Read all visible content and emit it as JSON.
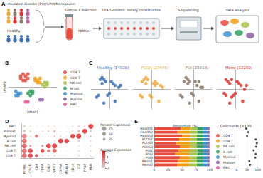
{
  "panels": [
    "A",
    "B",
    "C",
    "D",
    "E"
  ],
  "diagram": {
    "disorder_group": "Ovulation disorder (PCOS/POI/Menopause)",
    "healthy_group": "Healthy",
    "sample_label": "PBMCs",
    "steps": [
      "Sample Collection",
      "10X Genomic library construction",
      "Sequencing",
      "data analysis"
    ]
  },
  "chart_data": [
    {
      "type": "scatter",
      "xlabel": "UMAP1",
      "ylabel": "UMAP2",
      "xlim": [
        -10,
        10
      ],
      "ylim": [
        -10,
        10
      ],
      "tick_labels": false,
      "legend": "right",
      "series": [
        {
          "name": "CD4 T",
          "color": "#e84a3c",
          "x": [
            -5,
            -4,
            -3,
            -2,
            -4,
            -3,
            -5,
            -2
          ],
          "y": [
            5,
            6,
            5,
            4,
            3,
            3,
            4,
            6
          ]
        },
        {
          "name": "CD8 T",
          "color": "#f39c12",
          "x": [
            1,
            2,
            3,
            2,
            3,
            1
          ],
          "y": [
            4,
            3,
            4,
            2,
            2,
            3
          ]
        },
        {
          "name": "NK cell",
          "color": "#a6c34a",
          "x": [
            5,
            6,
            5,
            6,
            4
          ],
          "y": [
            2,
            1,
            0,
            2,
            1
          ]
        },
        {
          "name": "B cell",
          "color": "#2e9e5b",
          "x": [
            -1,
            0,
            -1,
            0,
            -2
          ],
          "y": [
            -2,
            -3,
            -4,
            -2,
            -3
          ]
        },
        {
          "name": "Myeloid",
          "color": "#3b8fd1",
          "x": [
            -7,
            -6,
            -6,
            -5,
            -7
          ],
          "y": [
            -2,
            -3,
            -4,
            -3,
            -4
          ]
        },
        {
          "name": "Platelet",
          "color": "#8e5ea2",
          "x": [
            3,
            4
          ],
          "y": [
            -6,
            -6
          ]
        },
        {
          "name": "RBC",
          "color": "#e6559a",
          "x": [
            -3,
            -2
          ],
          "y": [
            -7,
            -7
          ]
        }
      ]
    },
    {
      "type": "scatter",
      "title": "Healthy (14938)",
      "color": "#3a6cb5",
      "xlim": [
        -10,
        10
      ],
      "ylim": [
        -10,
        10
      ],
      "tick_labels": false,
      "x": [
        -5,
        -4,
        -3,
        -2,
        -4,
        1,
        2,
        3,
        5,
        6,
        -1,
        0,
        -6,
        -7,
        3,
        -3
      ],
      "y": [
        5,
        6,
        5,
        4,
        3,
        4,
        3,
        2,
        1,
        2,
        -3,
        -2,
        -3,
        -4,
        -6,
        -7
      ]
    },
    {
      "type": "scatter",
      "title": "PCOS (27675)",
      "color": "#f2a93b",
      "xlim": [
        -10,
        10
      ],
      "ylim": [
        -10,
        10
      ],
      "tick_labels": false,
      "x": [
        -5,
        -3,
        -2,
        -4,
        -3,
        1,
        2,
        3,
        2,
        5,
        6,
        -1,
        0,
        -6,
        -5,
        4
      ],
      "y": [
        4,
        6,
        5,
        5,
        3,
        3,
        4,
        3,
        2,
        2,
        1,
        -3,
        -4,
        -3,
        -4,
        -6
      ]
    },
    {
      "type": "scatter",
      "title": "POI (25816)",
      "color": "#8b7b6b",
      "xlim": [
        -10,
        10
      ],
      "ylim": [
        -10,
        10
      ],
      "tick_labels": false,
      "x": [
        -4,
        -3,
        -2,
        -5,
        -3,
        1,
        3,
        2,
        5,
        4,
        -1,
        0,
        -7,
        -6,
        3,
        -2
      ],
      "y": [
        6,
        5,
        4,
        4,
        3,
        4,
        4,
        2,
        1,
        1,
        -2,
        -3,
        -3,
        -4,
        -6,
        -7
      ]
    },
    {
      "type": "scatter",
      "title": "Meno (12260)",
      "color": "#e0302f",
      "xlim": [
        -10,
        10
      ],
      "ylim": [
        -10,
        10
      ],
      "tick_labels": false,
      "x": [
        -5,
        -4,
        -2,
        -3,
        2,
        1,
        3,
        6,
        5,
        -1,
        -2,
        0,
        -6,
        -5,
        4,
        -3
      ],
      "y": [
        5,
        4,
        5,
        3,
        3,
        4,
        2,
        2,
        0,
        -3,
        -4,
        -2,
        -2,
        -3,
        -6,
        -7
      ]
    },
    {
      "type": "dot",
      "categories": [
        "PTPRC",
        "CD3D",
        "CD4",
        "CD8A",
        "GNLY",
        "NKG7",
        "CD79A",
        "MS4A1",
        "CD14",
        "LYZ",
        "PPBP",
        "HBB"
      ],
      "rows": [
        "CD4 T",
        "CD8 T",
        "NK cell",
        "B cell",
        "Myeloid",
        "Platelet",
        "RBC"
      ],
      "percent_expressed": [
        [
          90,
          85,
          40,
          5,
          5,
          10,
          2,
          2,
          1,
          5,
          1,
          5
        ],
        [
          90,
          85,
          3,
          60,
          40,
          70,
          2,
          2,
          1,
          5,
          1,
          5
        ],
        [
          90,
          20,
          2,
          20,
          90,
          95,
          2,
          2,
          1,
          5,
          1,
          5
        ],
        [
          90,
          5,
          2,
          2,
          3,
          5,
          90,
          85,
          1,
          10,
          1,
          5
        ],
        [
          85,
          5,
          40,
          2,
          3,
          10,
          5,
          2,
          80,
          95,
          2,
          10
        ],
        [
          30,
          10,
          2,
          5,
          10,
          20,
          2,
          2,
          5,
          20,
          90,
          10
        ],
        [
          20,
          5,
          2,
          2,
          5,
          5,
          2,
          2,
          5,
          10,
          10,
          95
        ]
      ],
      "average_expression": [
        [
          1.2,
          1.8,
          1.5,
          -0.5,
          -0.6,
          -0.4,
          -0.6,
          -0.6,
          -0.7,
          -0.5,
          -0.5,
          -0.4
        ],
        [
          1.2,
          1.8,
          -0.6,
          2,
          0.8,
          1.2,
          -0.6,
          -0.6,
          -0.7,
          -0.5,
          -0.5,
          -0.4
        ],
        [
          1.3,
          0.2,
          -0.6,
          0.4,
          2,
          2,
          -0.6,
          -0.6,
          -0.7,
          -0.5,
          -0.5,
          -0.4
        ],
        [
          1.2,
          -0.6,
          -0.6,
          -0.6,
          -0.6,
          -0.5,
          2,
          2,
          -0.7,
          -0.3,
          -0.5,
          -0.4
        ],
        [
          0.8,
          -0.6,
          1,
          -0.6,
          -0.6,
          -0.4,
          -0.5,
          -0.6,
          2,
          2,
          -0.4,
          -0.3
        ],
        [
          -0.5,
          -0.4,
          -0.6,
          -0.5,
          -0.3,
          0,
          -0.6,
          -0.6,
          -0.5,
          -0.2,
          2,
          -0.3
        ],
        [
          -0.8,
          -0.6,
          -0.6,
          -0.6,
          -0.5,
          -0.5,
          -0.6,
          -0.6,
          -0.5,
          -0.4,
          -0.2,
          2
        ]
      ],
      "size_legend": {
        "title": "Percent Expressed",
        "values": [
          25,
          50,
          75
        ]
      },
      "color_bar": {
        "title": "Average Expression",
        "range": [
          -1,
          2
        ],
        "ticks": [
          -1,
          0,
          1,
          2
        ],
        "colors": [
          "#d9d9d9",
          "#e41a1c"
        ]
      }
    },
    {
      "type": "bar",
      "title": "Proportion (%)",
      "orientation": "horizontal",
      "stacked": true,
      "legend": "right",
      "categories": [
        "Health1",
        "Health2",
        "Health3",
        "PCOS1",
        "PCOS2",
        "PCOS3",
        "POI1",
        "POI2",
        "POI3",
        "Meno1",
        "Meno2"
      ],
      "xlim": [
        0,
        100
      ],
      "xticks": [
        0,
        25,
        50,
        75,
        100
      ],
      "series": [
        {
          "name": "CD4 T",
          "color": "#e84a3c",
          "values": [
            48,
            42,
            50,
            45,
            40,
            47,
            44,
            38,
            46,
            43,
            41
          ]
        },
        {
          "name": "CD8 T",
          "color": "#f39c12",
          "values": [
            18,
            22,
            16,
            20,
            24,
            18,
            20,
            25,
            19,
            21,
            22
          ]
        },
        {
          "name": "NK cell",
          "color": "#a6c34a",
          "values": [
            12,
            14,
            11,
            12,
            13,
            12,
            14,
            15,
            12,
            13,
            14
          ]
        },
        {
          "name": "B cell",
          "color": "#2e9e5b",
          "values": [
            10,
            10,
            11,
            10,
            11,
            11,
            10,
            10,
            11,
            11,
            11
          ]
        },
        {
          "name": "Myeloid",
          "color": "#3b8fd1",
          "values": [
            9,
            9,
            9,
            10,
            9,
            9,
            9,
            9,
            9,
            9,
            9
          ]
        },
        {
          "name": "Platelet",
          "color": "#8e5ea2",
          "values": [
            2,
            2,
            2,
            2,
            2,
            2,
            2,
            2,
            2,
            2,
            2
          ]
        },
        {
          "name": "RBC",
          "color": "#e6559a",
          "values": [
            1,
            1,
            1,
            1,
            1,
            1,
            1,
            1,
            1,
            1,
            1
          ]
        }
      ]
    },
    {
      "type": "scatter",
      "title": "Cellcounts (×100)",
      "categories": [
        "Health1",
        "Health2",
        "Health3",
        "PCOS1",
        "PCOS2",
        "PCOS3",
        "POI1",
        "POI2",
        "POI3",
        "Meno1",
        "Meno2"
      ],
      "values": [
        45,
        55,
        49,
        90,
        95,
        92,
        80,
        90,
        88,
        60,
        63
      ],
      "color": "#222222",
      "xlim": [
        0,
        100
      ],
      "xticks": [
        0,
        50,
        100
      ],
      "tick_labels": "x"
    }
  ]
}
